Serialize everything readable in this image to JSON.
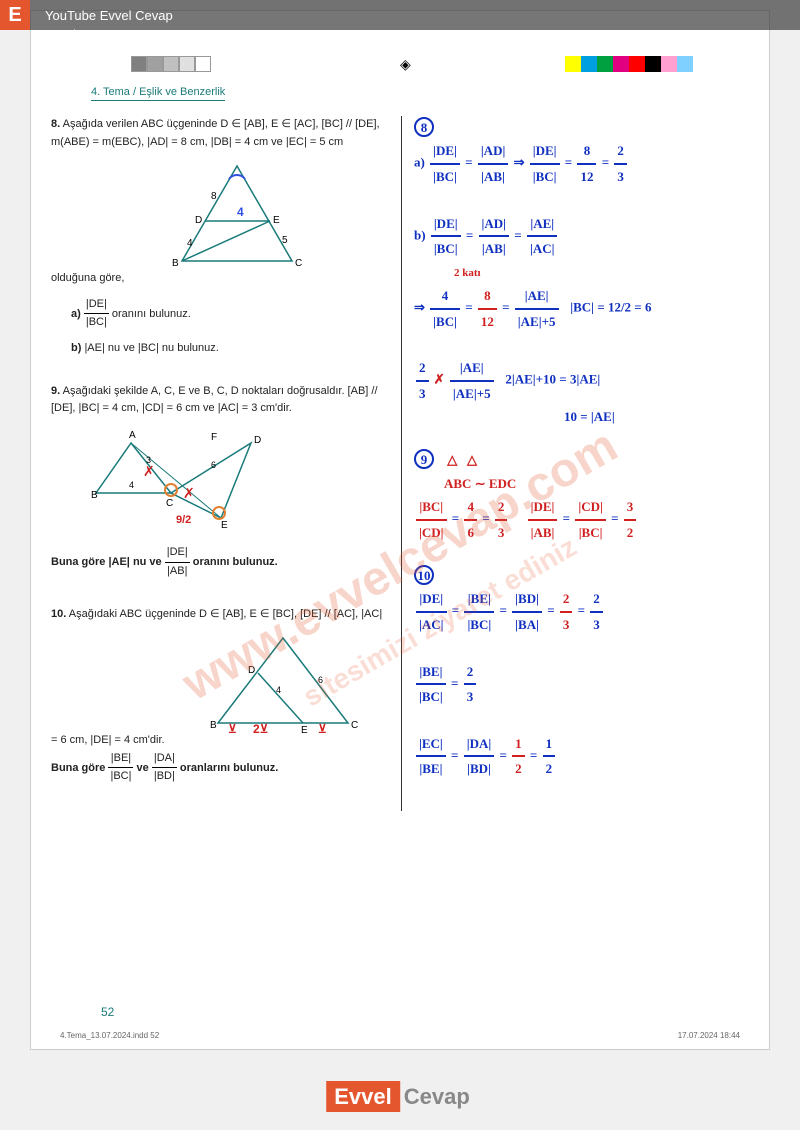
{
  "topbar": {
    "youtube": "YouTube Evvel Cevap",
    "url": "evvelcevap.com"
  },
  "header": "4. Tema / Eşlik ve Benzerlik",
  "color_strips": {
    "left": [
      "#808080",
      "#a0a0a0",
      "#c0c0c0",
      "#e0e0e0",
      "#ffffff"
    ],
    "right": [
      "#ffff00",
      "#00a0e0",
      "#00a040",
      "#e00080",
      "#ff0000",
      "#000000",
      "#ffa0d0",
      "#80d0ff",
      "#ffffff"
    ]
  },
  "q8": {
    "num": "8.",
    "text": "Aşağıda verilen ABC üçgeninde D ∈ [AB], E ∈ [AC], [BC] // [DE], m(ABE) = m(EBC), |AD| = 8 cm, |DB| = 4 cm ve |EC| = 5 cm olduğuna göre,",
    "a": "oranını bulunuz.",
    "a_frac_top": "|DE|",
    "a_frac_bot": "|BC|",
    "b": "|AE| nu ve |BC| nu bulunuz.",
    "triangle": {
      "labels": [
        "A",
        "B",
        "C",
        "D",
        "E"
      ],
      "sides": [
        "8",
        "4",
        "4",
        "5"
      ],
      "colors": {
        "line": "#1a7a7a",
        "text": "#000"
      }
    }
  },
  "q9": {
    "num": "9.",
    "text": "Aşağıdaki şekilde A, C, E ve B, C, D noktaları doğrusaldır. [AB] // [DE], |BC| = 4 cm, |CD| = 6 cm ve |AC| = 3 cm'dir.",
    "prompt_pre": "Buna göre |AE| nu ve",
    "prompt_frac_top": "|DE|",
    "prompt_frac_bot": "|AB|",
    "prompt_post": "oranını bulunuz.",
    "triangle": {
      "labels": [
        "A",
        "B",
        "C",
        "D",
        "E",
        "F"
      ],
      "sides": [
        "3",
        "4",
        "6"
      ],
      "ann": "9/2"
    }
  },
  "q10": {
    "num": "10.",
    "text": "Aşağıdaki ABC üçgeninde D ∈ [AB], E ∈ [BC], [DE] // [AC], |AC| = 6 cm, |DE| = 4 cm'dir.",
    "prompt_pre": "Buna göre",
    "f1_top": "|BE|",
    "f1_bot": "|BC|",
    "f2_top": "|DA|",
    "f2_bot": "|BD|",
    "prompt_post": "oranlarını bulunuz.",
    "triangle": {
      "labels": [
        "A",
        "B",
        "C",
        "D",
        "E"
      ],
      "sides": [
        "4",
        "6"
      ],
      "ann": [
        "⊻",
        "2⊻",
        "⊻"
      ]
    }
  },
  "ans8": {
    "a": {
      "lhs_t": "|DE|",
      "lhs_b": "|BC|",
      "eq1_t": "|AD|",
      "eq1_b": "|AB|",
      "eq2_t": "8",
      "eq2_b": "12",
      "res_t": "2",
      "res_b": "3"
    },
    "b": {
      "line1_t1": "|DE|",
      "line1_b1": "|BC|",
      "line1_t2": "|AD|",
      "line1_b2": "|AB|",
      "line1_t3": "|AE|",
      "line1_b3": "|AC|",
      "note": "2 katı",
      "line2_t1": "4",
      "line2_b1": "|BC|",
      "line2_t2": "8",
      "line2_b2": "12",
      "line2_t3": "|AE|",
      "line2_b3": "|AE|+5",
      "bc": "|BC| = 12/2 = 6",
      "line3a_t": "2",
      "line3a_b": "3",
      "line3b_t": "|AE|",
      "line3b_b": "|AE|+5",
      "line3_r1": "2|AE|+10 = 3|AE|",
      "line3_r2": "10 = |AE|"
    }
  },
  "ans9": {
    "sim": "ABC ∼ EDC",
    "f1_t": "|BC|",
    "f1_b": "|CD|",
    "f1_v_t": "4",
    "f1_v_b": "6",
    "f1_r_t": "2",
    "f1_r_b": "3",
    "f2_t": "|DE|",
    "f2_b": "|AB|",
    "f2_e_t": "|CD|",
    "f2_e_b": "|BC|",
    "f2_r_t": "3",
    "f2_r_b": "2"
  },
  "ans10": {
    "l1_t1": "|DE|",
    "l1_b1": "|AC|",
    "l1_t2": "|BE|",
    "l1_b2": "|BC|",
    "l1_t3": "|BD|",
    "l1_b3": "|BA|",
    "l1_v_t": "2",
    "l1_v_b": "3",
    "l1_r_t": "2",
    "l1_r_b": "3",
    "l2_t": "|BE|",
    "l2_b": "|BC|",
    "l2_r_t": "2",
    "l2_r_b": "3",
    "l3_t1": "|EC|",
    "l3_b1": "|BE|",
    "l3_t2": "|DA|",
    "l3_b2": "|BD|",
    "l3_v_t": "1",
    "l3_v_b": "2",
    "l3_r_t": "1",
    "l3_r_b": "2"
  },
  "page_num": "52",
  "footer": {
    "file": "4.Tema_13.07.2024.indd 52",
    "date": "17.07.2024 18:44"
  },
  "logo": {
    "ev": "Evvel",
    "ce": "Cevap"
  },
  "wm": "www.evvelcevap.com",
  "wm2": "sitesimizi ziyaret ediniz"
}
